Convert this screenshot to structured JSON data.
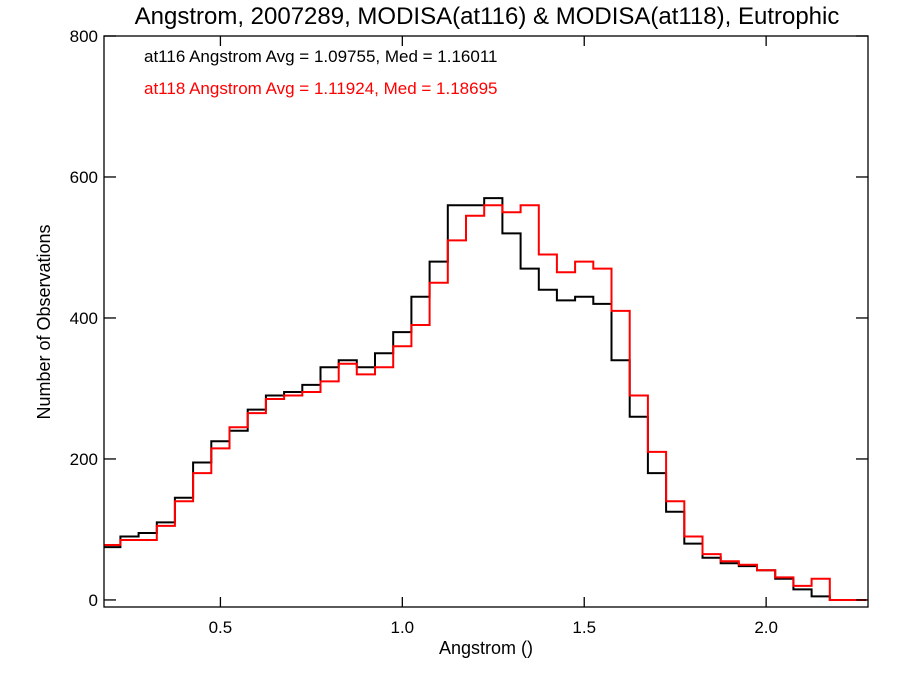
{
  "chart_data": {
    "type": "line",
    "title": "Angstrom, 2007289, MODISA(at116) & MODISA(at118), Eutrophic",
    "xlabel": "Angstrom ()",
    "ylabel": "Number of Observations",
    "xlim": [
      0.18,
      2.28
    ],
    "ylim": [
      -10,
      800
    ],
    "xticks": [
      {
        "value": 0.5,
        "label": "0.5"
      },
      {
        "value": 1.0,
        "label": "1.0"
      },
      {
        "value": 1.5,
        "label": "1.5"
      },
      {
        "value": 2.0,
        "label": "2.0"
      }
    ],
    "yticks": [
      {
        "value": 0,
        "label": "0"
      },
      {
        "value": 200,
        "label": "200"
      },
      {
        "value": 400,
        "label": "400"
      },
      {
        "value": 600,
        "label": "600"
      },
      {
        "value": 800,
        "label": "800"
      }
    ],
    "grid": false,
    "legend_position": "top-left",
    "step": "histogram",
    "series": [
      {
        "name": "at116",
        "color": "#000000",
        "legend": "at116 Angstrom Avg = 1.09755, Med = 1.16011",
        "x": [
          0.2,
          0.25,
          0.3,
          0.35,
          0.4,
          0.45,
          0.5,
          0.55,
          0.6,
          0.65,
          0.7,
          0.75,
          0.8,
          0.85,
          0.9,
          0.95,
          1.0,
          1.05,
          1.1,
          1.15,
          1.2,
          1.25,
          1.3,
          1.35,
          1.4,
          1.45,
          1.5,
          1.55,
          1.6,
          1.65,
          1.7,
          1.75,
          1.8,
          1.85,
          1.9,
          1.95,
          2.0,
          2.05,
          2.1,
          2.15,
          2.2,
          2.25
        ],
        "y": [
          75,
          90,
          95,
          110,
          145,
          195,
          225,
          240,
          270,
          290,
          295,
          305,
          330,
          340,
          330,
          350,
          380,
          430,
          480,
          560,
          560,
          570,
          520,
          470,
          440,
          425,
          430,
          420,
          340,
          260,
          180,
          125,
          80,
          60,
          52,
          48,
          42,
          30,
          15,
          5,
          0,
          0
        ]
      },
      {
        "name": "at118",
        "color": "#ff0000",
        "legend": "at118 Angstrom Avg = 1.11924, Med = 1.18695",
        "x": [
          0.2,
          0.25,
          0.3,
          0.35,
          0.4,
          0.45,
          0.5,
          0.55,
          0.6,
          0.65,
          0.7,
          0.75,
          0.8,
          0.85,
          0.9,
          0.95,
          1.0,
          1.05,
          1.1,
          1.15,
          1.2,
          1.25,
          1.3,
          1.35,
          1.4,
          1.45,
          1.5,
          1.55,
          1.6,
          1.65,
          1.7,
          1.75,
          1.8,
          1.85,
          1.9,
          1.95,
          2.0,
          2.05,
          2.1,
          2.15,
          2.2,
          2.25
        ],
        "y": [
          78,
          85,
          85,
          105,
          140,
          180,
          215,
          245,
          265,
          285,
          290,
          295,
          310,
          335,
          320,
          330,
          360,
          390,
          450,
          510,
          545,
          560,
          550,
          560,
          490,
          465,
          480,
          470,
          410,
          290,
          210,
          140,
          90,
          65,
          55,
          50,
          42,
          32,
          20,
          30,
          0,
          0
        ]
      }
    ]
  }
}
